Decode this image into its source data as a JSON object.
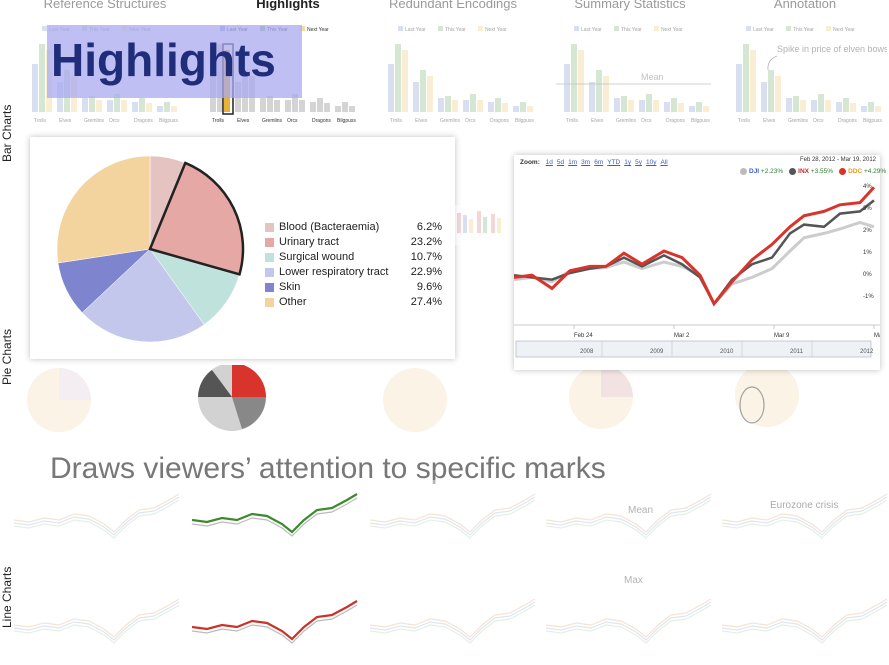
{
  "columns": [
    "Reference Structures",
    "Highlights",
    "Redundant Encodings",
    "Summary Statistics",
    "Annotation"
  ],
  "active_column": "Highlights",
  "row_labels": [
    "Bar Charts",
    "Pie Charts",
    "Line Charts"
  ],
  "banner": "Highlights",
  "caption": "Draws viewers’ attention to specific marks",
  "annotations": {
    "spike": "Spike in price of elven bows",
    "mean": "Mean",
    "max": "Max",
    "eurozone": "Eurozone crisis"
  },
  "bar_chart": {
    "legend": [
      "Last Year",
      "This Year",
      "Next Year"
    ],
    "categories": [
      "Trolls",
      "Elves",
      "Gremlins",
      "Orcs",
      "Dragons",
      "Bilgpuss"
    ],
    "colors": {
      "last": "#a9b9e0",
      "this": "#a4c8a0",
      "next": "#f2d9a2"
    }
  },
  "pie_legend": {
    "items": [
      {
        "label": "Blood (Bacteraemia)",
        "value": "6.2%",
        "color": "#e4c3c1"
      },
      {
        "label": "Urinary tract",
        "value": "23.2%",
        "color": "#e6a8a5"
      },
      {
        "label": "Surgical wound",
        "value": "10.7%",
        "color": "#bfe3dc"
      },
      {
        "label": "Lower respiratory tract",
        "value": "22.9%",
        "color": "#c4c7ec"
      },
      {
        "label": "Skin",
        "value": "9.6%",
        "color": "#7f84cf"
      },
      {
        "label": "Other",
        "value": "27.4%",
        "color": "#f4d49e"
      }
    ]
  },
  "stock_chart": {
    "zoom_label": "Zoom:",
    "zoom_options": [
      "1d",
      "5d",
      "1m",
      "3m",
      "6m",
      "YTD",
      "1y",
      "5y",
      "10y",
      "All"
    ],
    "date_range": "Feb 28, 2012  -  Mar 19, 2012",
    "series": [
      {
        "name": "DJI",
        "change": "+2.23%",
        "color": "#bbbbbb"
      },
      {
        "name": "INX",
        "change": "+3.55%",
        "color": "#555555"
      },
      {
        "name": "DDC",
        "change": "+4.29%",
        "color": "#d9342b"
      }
    ],
    "y_ticks": [
      "4%",
      "3%",
      "2%",
      "1%",
      "0%",
      "-1%"
    ],
    "x_ticks": [
      "Feb 24",
      "Mar 2",
      "Mar 9",
      "Mar 16"
    ],
    "nav_years": [
      "2008",
      "2009",
      "2010",
      "2011",
      "2012"
    ]
  }
}
